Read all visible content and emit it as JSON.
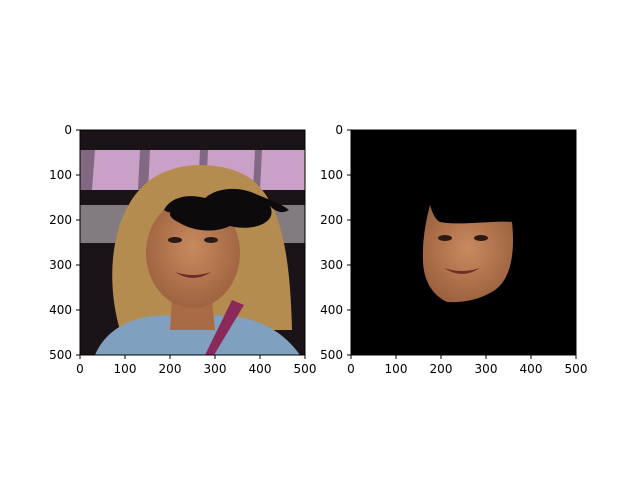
{
  "chart_data": [
    {
      "type": "image",
      "panel": "left",
      "content": "face photo with a black mustache overlay",
      "xlim": [
        0,
        500
      ],
      "ylim": [
        500,
        0
      ],
      "xticks": [
        0,
        100,
        200,
        300,
        400,
        500
      ],
      "yticks": [
        0,
        100,
        200,
        300,
        400,
        500
      ],
      "xtick_labels": [
        "0",
        "100",
        "200",
        "300",
        "400",
        "500"
      ],
      "ytick_labels": [
        "0",
        "100",
        "200",
        "300",
        "400",
        "500"
      ]
    },
    {
      "type": "image",
      "panel": "right",
      "content": "segmented face region on black background",
      "xlim": [
        0,
        500
      ],
      "ylim": [
        500,
        0
      ],
      "xticks": [
        0,
        100,
        200,
        300,
        400,
        500
      ],
      "yticks": [
        0,
        100,
        200,
        300,
        400,
        500
      ],
      "xtick_labels": [
        "0",
        "100",
        "200",
        "300",
        "400",
        "500"
      ],
      "ytick_labels": [
        "0",
        "100",
        "200",
        "300",
        "400",
        "500"
      ]
    }
  ],
  "colors": {
    "background_dark": "#1a1418",
    "banner_pink": "#c9a0c8",
    "hair": "#b58c4f",
    "skin": "#b4764f",
    "shirt": "#7fa0bf",
    "mustache": "#0c0a0a",
    "mask_black": "#000000"
  }
}
